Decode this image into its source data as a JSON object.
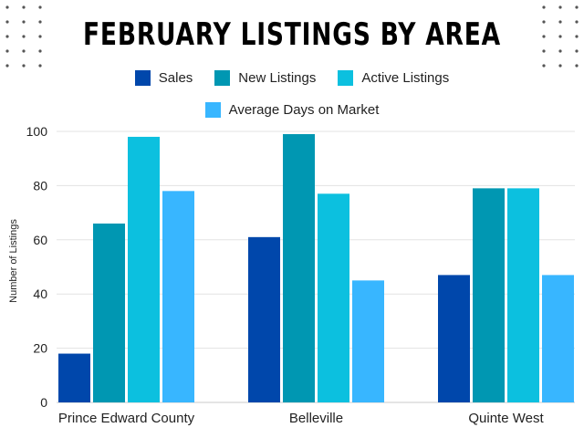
{
  "colors": {
    "sales": "#0047ab",
    "new_listings": "#0097b2",
    "active_listings": "#0cc0df",
    "avg_days": "#38b6ff",
    "dots": "#555555"
  },
  "chart_data": {
    "type": "bar",
    "title": "FEBRUARY LISTINGS BY AREA",
    "xlabel": "",
    "ylabel": "Number of Listings",
    "ylim": [
      0,
      100
    ],
    "yticks": [
      0,
      20,
      40,
      60,
      80,
      100
    ],
    "grid": true,
    "legend_position": "top",
    "categories": [
      "Prince Edward County",
      "Belleville",
      "Quinte West"
    ],
    "series": [
      {
        "name": "Sales",
        "values": [
          18,
          61,
          47
        ]
      },
      {
        "name": "New Listings",
        "values": [
          66,
          99,
          79
        ]
      },
      {
        "name": "Active Listings",
        "values": [
          98,
          77,
          79
        ]
      },
      {
        "name": "Average Days on Market",
        "values": [
          78,
          45,
          47
        ]
      }
    ]
  }
}
